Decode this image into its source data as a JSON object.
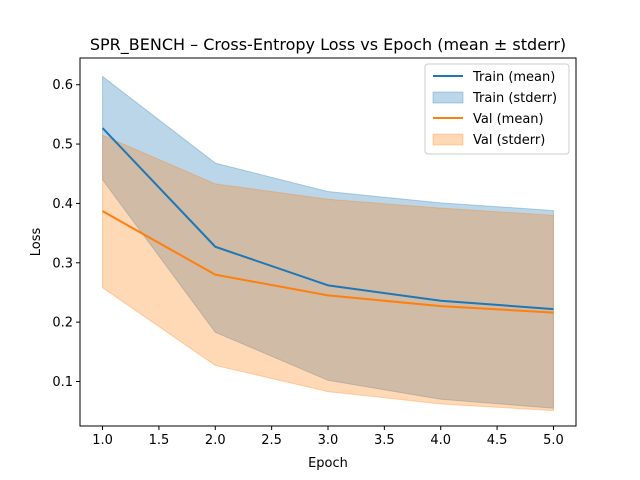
{
  "chart_data": {
    "type": "line",
    "title": "SPR_BENCH – Cross-Entropy Loss vs Epoch (mean ± stderr)",
    "xlabel": "Epoch",
    "ylabel": "Loss",
    "x": [
      1,
      2,
      3,
      4,
      5
    ],
    "xlim": [
      0.8,
      5.2
    ],
    "ylim": [
      0.025,
      0.645
    ],
    "xticks": [
      1.0,
      1.5,
      2.0,
      2.5,
      3.0,
      3.5,
      4.0,
      4.5,
      5.0
    ],
    "xtick_labels": [
      "1.0",
      "1.5",
      "2.0",
      "2.5",
      "3.0",
      "3.5",
      "4.0",
      "4.5",
      "5.0"
    ],
    "yticks": [
      0.1,
      0.2,
      0.3,
      0.4,
      0.5,
      0.6
    ],
    "ytick_labels": [
      "0.1",
      "0.2",
      "0.3",
      "0.4",
      "0.5",
      "0.6"
    ],
    "grid": false,
    "legend_position": "top-right",
    "series": [
      {
        "name": "Train (mean)",
        "band_name": "Train (stderr)",
        "color": "#1f77b4",
        "mean": [
          0.527,
          0.327,
          0.262,
          0.236,
          0.222
        ],
        "upper": [
          0.614,
          0.468,
          0.42,
          0.401,
          0.388
        ],
        "lower": [
          0.44,
          0.183,
          0.102,
          0.07,
          0.055
        ]
      },
      {
        "name": "Val (mean)",
        "band_name": "Val (stderr)",
        "color": "#ff7f0e",
        "mean": [
          0.387,
          0.28,
          0.245,
          0.227,
          0.216
        ],
        "upper": [
          0.515,
          0.433,
          0.407,
          0.392,
          0.38
        ],
        "lower": [
          0.258,
          0.127,
          0.083,
          0.062,
          0.051
        ]
      }
    ]
  }
}
